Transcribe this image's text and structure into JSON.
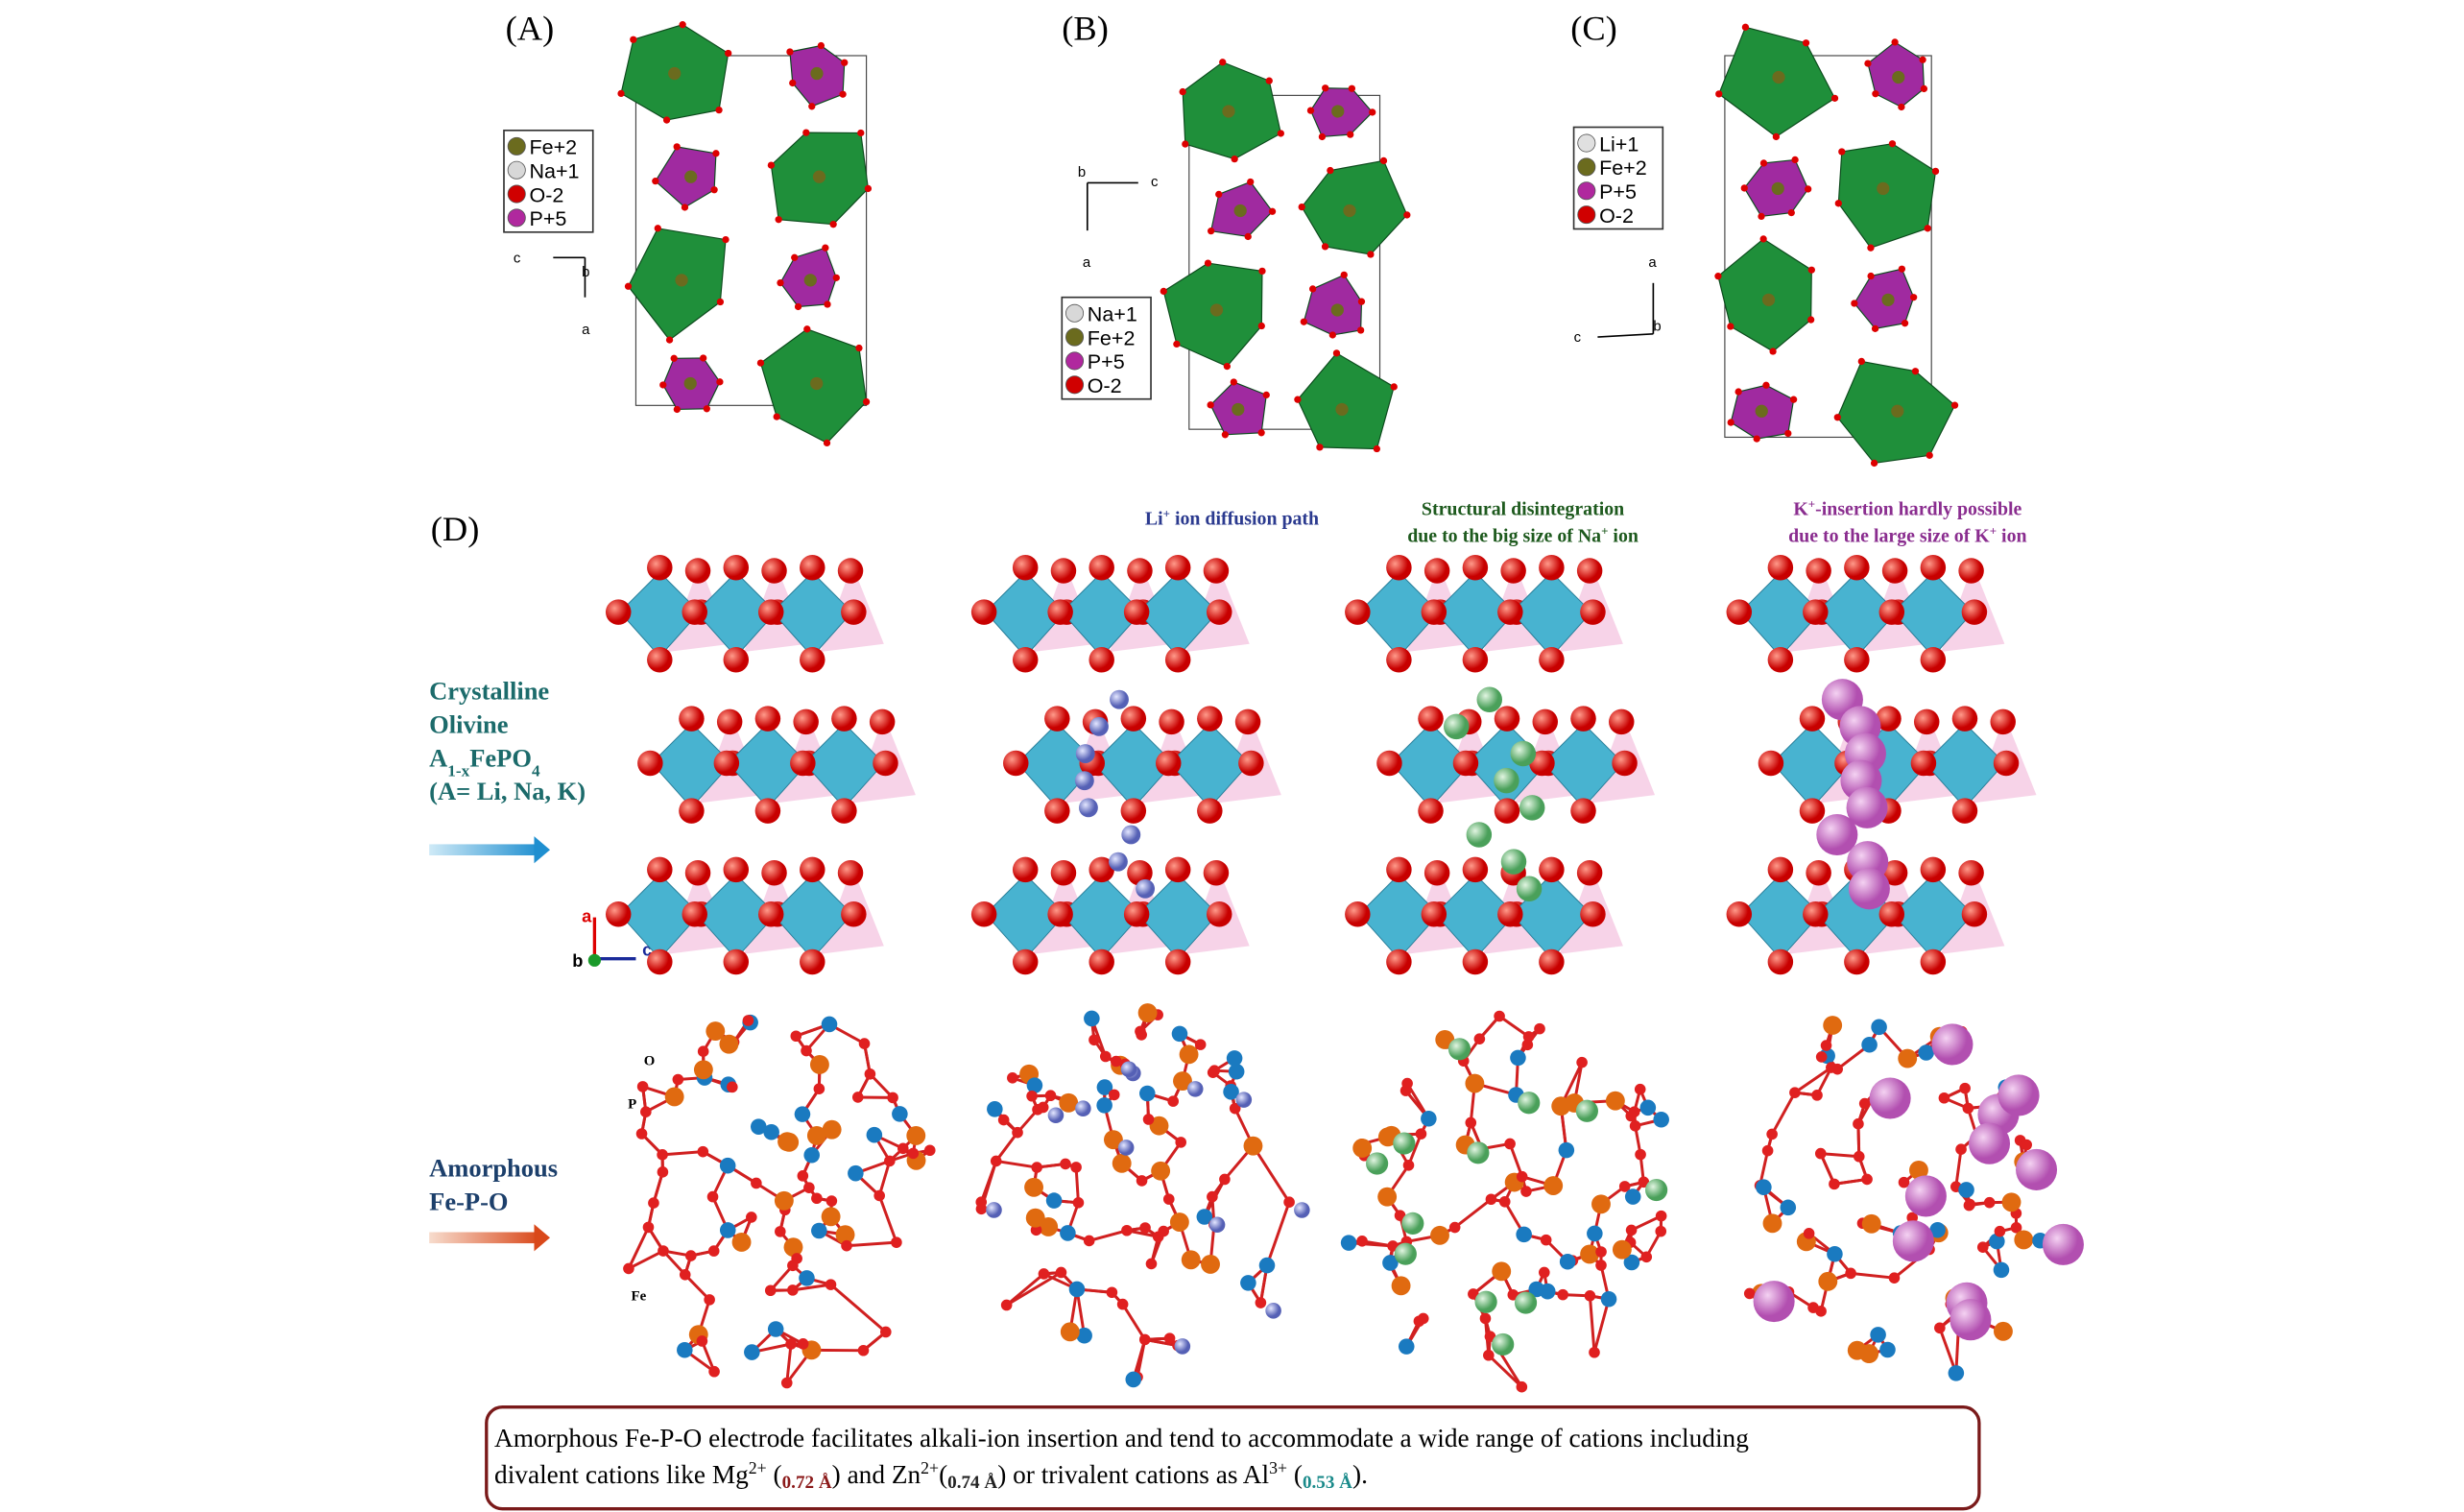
{
  "panels": {
    "A": {
      "label": "(A)",
      "legend": [
        "Fe+2",
        "Na+1",
        "O-2",
        "P+5"
      ],
      "axes": [
        "c",
        "b",
        "a"
      ]
    },
    "B": {
      "label": "(B)",
      "legend": [
        "Na+1",
        "Fe+2",
        "P+5",
        "O-2"
      ],
      "axes": [
        "b",
        "c",
        "a"
      ]
    },
    "C": {
      "label": "(C)",
      "legend": [
        "Li+1",
        "Fe+2",
        "P+5",
        "O-2"
      ],
      "axes": [
        "a",
        "c",
        "b"
      ]
    },
    "D": {
      "label": "(D)",
      "crystalline": {
        "lines": [
          [
            {
              "text": "Crystalline"
            }
          ],
          [
            {
              "text": "Olivine"
            }
          ],
          [
            {
              "text": "A"
            },
            {
              "text": "1-x",
              "style": "sub"
            },
            {
              "text": "FePO"
            },
            {
              "text": "4",
              "style": "sub"
            }
          ],
          [
            {
              "text": "(A= Li, Na, K)"
            }
          ]
        ]
      },
      "amorphous": {
        "lines": [
          [
            {
              "text": "Amorphous"
            }
          ],
          [
            {
              "text": "Fe-P-O"
            }
          ]
        ]
      },
      "axes": [
        "a",
        "b",
        "c"
      ],
      "atom_labels": [
        "O",
        "P",
        "Fe"
      ],
      "annotations": [
        {
          "lines": [
            [
              {
                "text": "Li"
              },
              {
                "text": "+",
                "style": "sup"
              },
              {
                "text": " ion diffusion path"
              }
            ]
          ]
        },
        {
          "lines": [
            [
              {
                "text": "Structural disintegration"
              }
            ],
            [
              {
                "text": "due to the big size of Na"
              },
              {
                "text": "+",
                "style": "sup"
              },
              {
                "text": " ion"
              }
            ]
          ]
        },
        {
          "lines": [
            [
              {
                "text": "K"
              },
              {
                "text": "+",
                "style": "sup"
              },
              {
                "text": "-insertion hardly  possible"
              }
            ],
            [
              {
                "text": "due to the large size of K"
              },
              {
                "text": "+",
                "style": "sup"
              },
              {
                "text": " ion"
              }
            ]
          ]
        }
      ]
    }
  },
  "caption": {
    "lines": [
      [
        {
          "text": "Amorphous Fe-P-O electrode  facilitates  alkali-ion  insertion  and tend to accommodate a wide range of cations including"
        }
      ],
      [
        {
          "text": "divalent cations like Mg"
        },
        {
          "text": "2+",
          "style": "sup"
        },
        {
          "text": " ("
        },
        {
          "text": "0.72 Å",
          "style": "size"
        },
        {
          "text": ") and Zn"
        },
        {
          "text": "2+",
          "style": "sup"
        },
        {
          "text": "("
        },
        {
          "text": "0.74 Å",
          "style": "size"
        },
        {
          "text": ") or trivalent cations as Al"
        },
        {
          "text": "3+",
          "style": "sup"
        },
        {
          "text": " ("
        },
        {
          "text": "0.53 Å",
          "style": "size"
        },
        {
          "text": ")."
        }
      ]
    ]
  }
}
